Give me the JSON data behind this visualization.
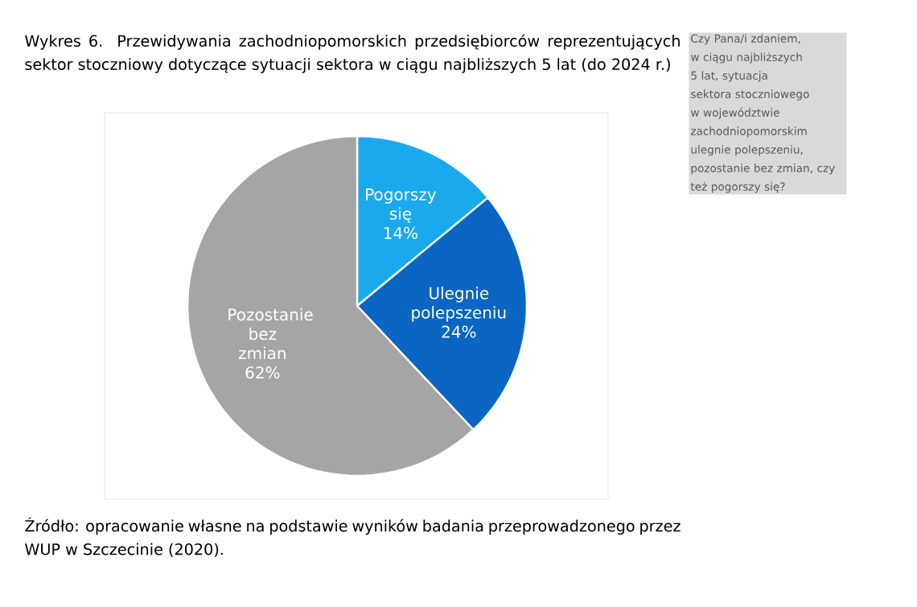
{
  "chart_data": {
    "type": "pie",
    "title": "Wykres 6. Przewidywania zachodniopomorskich przedsiębiorców reprezentujących sektor stoczniowy dotyczące sytuacji sektora w ciągu najbliższych 5 lat (do 2024 r.)",
    "categories": [
      "Pogorszy się",
      "Ulegnie polepszeniu",
      "Pozostanie bez zmian"
    ],
    "values": [
      14,
      24,
      62
    ],
    "colors": [
      "#1aa9ec",
      "#0a66c2",
      "#a5a5a5"
    ],
    "value_labels": [
      "14%",
      "24%",
      "62%"
    ],
    "annotations": [
      "Czy Pana/i zdaniem, w ciągu najbliższych 5 lat, sytuacja sektora stoczniowego w województwie zachodniopomorskim ulegnie polepszeniu, pozostanie bez zmian, czy też pogorszy się?",
      "Źródło: opracowanie własne na podstawie wyników badania przeprowadzonego przez WUP w Szczecinie (2020)."
    ]
  }
}
